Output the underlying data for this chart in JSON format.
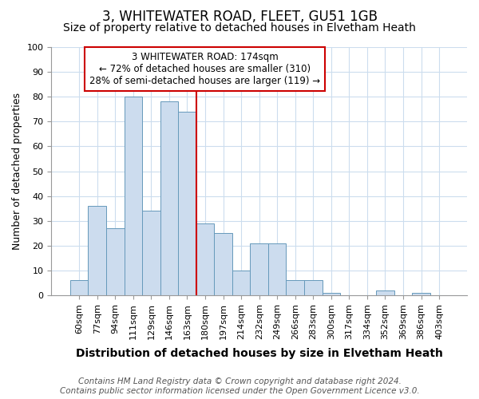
{
  "title": "3, WHITEWATER ROAD, FLEET, GU51 1GB",
  "subtitle": "Size of property relative to detached houses in Elvetham Heath",
  "xlabel": "Distribution of detached houses by size in Elvetham Heath",
  "ylabel": "Number of detached properties",
  "categories": [
    "60sqm",
    "77sqm",
    "94sqm",
    "111sqm",
    "129sqm",
    "146sqm",
    "163sqm",
    "180sqm",
    "197sqm",
    "214sqm",
    "232sqm",
    "249sqm",
    "266sqm",
    "283sqm",
    "300sqm",
    "317sqm",
    "334sqm",
    "352sqm",
    "369sqm",
    "386sqm",
    "403sqm"
  ],
  "values": [
    6,
    36,
    27,
    80,
    34,
    78,
    74,
    29,
    25,
    10,
    21,
    21,
    6,
    6,
    1,
    0,
    0,
    2,
    0,
    1,
    0
  ],
  "bar_color": "#ccdcee",
  "bar_edge_color": "#6699bb",
  "ylim": [
    0,
    100
  ],
  "yticks": [
    0,
    10,
    20,
    30,
    40,
    50,
    60,
    70,
    80,
    90,
    100
  ],
  "vline_color": "#cc0000",
  "vline_x_index": 7,
  "marker_label": "3 WHITEWATER ROAD: 174sqm",
  "annotation_line1": "← 72% of detached houses are smaller (310)",
  "annotation_line2": "28% of semi-detached houses are larger (119) →",
  "annotation_box_color": "#ffffff",
  "annotation_box_edge": "#cc0000",
  "footer_line1": "Contains HM Land Registry data © Crown copyright and database right 2024.",
  "footer_line2": "Contains public sector information licensed under the Open Government Licence v3.0.",
  "background_color": "#ffffff",
  "plot_bg_color": "#ffffff",
  "grid_color": "#ccddee",
  "title_fontsize": 12,
  "subtitle_fontsize": 10,
  "xlabel_fontsize": 10,
  "ylabel_fontsize": 9,
  "tick_fontsize": 8,
  "annotation_fontsize": 8.5,
  "footer_fontsize": 7.5
}
